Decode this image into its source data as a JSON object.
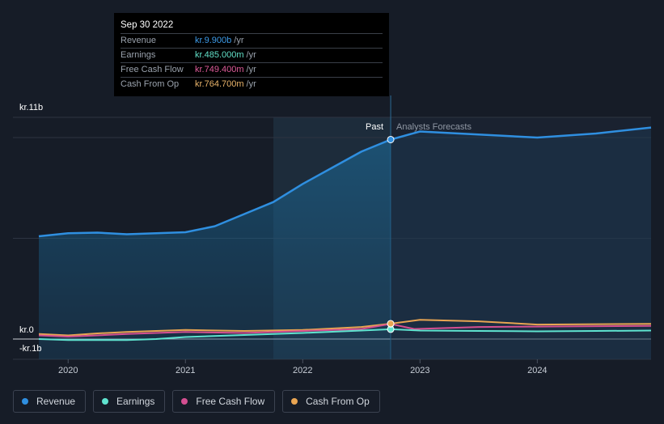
{
  "tooltip": {
    "date": "Sep 30 2022",
    "rows": [
      {
        "label": "Revenue",
        "value": "kr.9.900b",
        "unit": "/yr",
        "color": "#3d9be8"
      },
      {
        "label": "Earnings",
        "value": "kr.485.000m",
        "unit": "/yr",
        "color": "#62e0c8"
      },
      {
        "label": "Free Cash Flow",
        "value": "kr.749.400m",
        "unit": "/yr",
        "color": "#df5b9a"
      },
      {
        "label": "Cash From Op",
        "value": "kr.764.700m",
        "unit": "/yr",
        "color": "#e9b36a"
      }
    ]
  },
  "legend": [
    {
      "label": "Revenue",
      "color": "#2f8fe0"
    },
    {
      "label": "Earnings",
      "color": "#5fe3cf"
    },
    {
      "label": "Free Cash Flow",
      "color": "#d44f91"
    },
    {
      "label": "Cash From Op",
      "color": "#e9a552"
    }
  ],
  "chart_data": {
    "type": "line",
    "y_tick_labels": [
      "kr.11b",
      "kr.0",
      "-kr.1b"
    ],
    "ylim": [
      -1,
      11
    ],
    "x_tick_labels": [
      "2020",
      "2021",
      "2022",
      "2023",
      "2024"
    ],
    "xlim": [
      2019.75,
      2024.97
    ],
    "past_label": "Past",
    "forecast_label": "Analysts Forecasts",
    "divider_x": 2022.75,
    "highlight_start_x": 2021.75,
    "series": [
      {
        "name": "Revenue",
        "color": "#2f8fe0",
        "x": [
          2019.75,
          2020.0,
          2020.25,
          2020.5,
          2020.75,
          2021.0,
          2021.25,
          2021.5,
          2021.75,
          2022.0,
          2022.25,
          2022.5,
          2022.75,
          2023.0,
          2023.5,
          2024.0,
          2024.5,
          2024.97
        ],
        "y": [
          5.1,
          5.25,
          5.28,
          5.2,
          5.25,
          5.3,
          5.6,
          6.2,
          6.8,
          7.7,
          8.5,
          9.3,
          9.9,
          10.3,
          10.15,
          10.0,
          10.2,
          10.5
        ]
      },
      {
        "name": "Earnings",
        "color": "#5fe3cf",
        "x": [
          2019.75,
          2020.0,
          2020.5,
          2020.75,
          2021.0,
          2021.5,
          2022.0,
          2022.5,
          2022.75,
          2023.0,
          2023.5,
          2024.0,
          2024.5,
          2024.97
        ],
        "y": [
          0.0,
          -0.05,
          -0.05,
          0.0,
          0.1,
          0.2,
          0.3,
          0.42,
          0.485,
          0.42,
          0.4,
          0.38,
          0.4,
          0.42
        ]
      },
      {
        "name": "Free Cash Flow",
        "color": "#d44f91",
        "x": [
          2019.75,
          2020.0,
          2020.5,
          2021.0,
          2021.5,
          2022.0,
          2022.5,
          2022.75,
          2022.95,
          2023.5,
          2024.0,
          2024.97
        ],
        "y": [
          0.18,
          0.12,
          0.25,
          0.35,
          0.3,
          0.4,
          0.5,
          0.749,
          0.5,
          0.6,
          0.62,
          0.65
        ]
      },
      {
        "name": "Cash From Op",
        "color": "#e9a552",
        "x": [
          2019.75,
          2020.0,
          2020.25,
          2020.5,
          2020.75,
          2021.0,
          2021.5,
          2022.0,
          2022.5,
          2022.75,
          2023.0,
          2023.5,
          2024.0,
          2024.97
        ],
        "y": [
          0.25,
          0.18,
          0.28,
          0.35,
          0.4,
          0.45,
          0.4,
          0.45,
          0.6,
          0.765,
          0.95,
          0.88,
          0.72,
          0.75
        ]
      }
    ]
  }
}
